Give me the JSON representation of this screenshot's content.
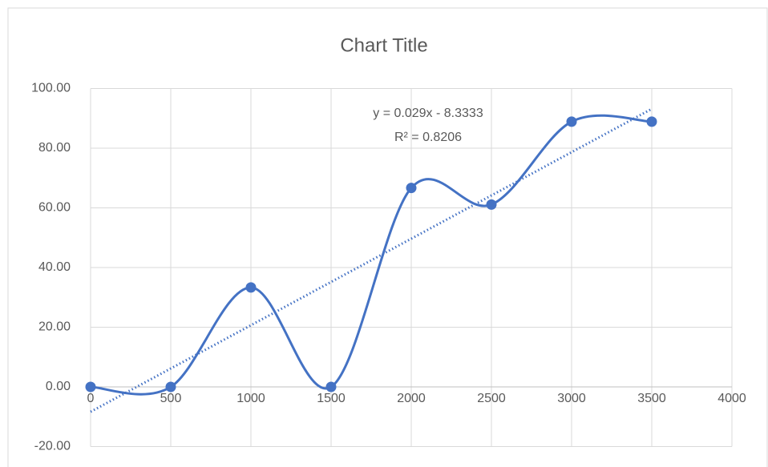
{
  "chart_data": {
    "type": "scatter",
    "title": "Chart Title",
    "series": [
      {
        "color": "#4472c4",
        "smooth": true,
        "x": [
          0,
          500,
          1000,
          1500,
          2000,
          2500,
          3000,
          3500
        ],
        "values": [
          0,
          0,
          33.33,
          0,
          66.67,
          61.11,
          88.89,
          88.89
        ]
      }
    ],
    "trendline": {
      "slope": 0.029,
      "intercept": -8.3333,
      "equation": "y = 0.029x - 8.3333",
      "r_squared": "R² = 0.8206",
      "color": "#4472c4"
    },
    "xlim": [
      0,
      4000
    ],
    "xticks": [
      0,
      500,
      1000,
      1500,
      2000,
      2500,
      3000,
      3500,
      4000
    ],
    "ylim": [
      -20,
      100
    ],
    "yticks": [
      {
        "value": -20,
        "label": "-20.00"
      },
      {
        "value": 0,
        "label": "0.00"
      },
      {
        "value": 20,
        "label": "20.00"
      },
      {
        "value": 40,
        "label": "40.00"
      },
      {
        "value": 60,
        "label": "60.00"
      },
      {
        "value": 80,
        "label": "80.00"
      },
      {
        "value": 100,
        "label": "100.00"
      }
    ],
    "grid": true
  }
}
